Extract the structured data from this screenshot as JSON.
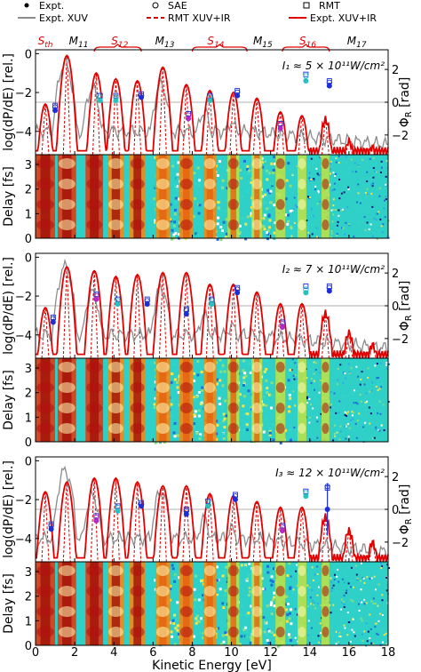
{
  "legend": {
    "entries": [
      {
        "label": "Expt.",
        "marker": "filled-circle",
        "color": "#000000"
      },
      {
        "label": "SAE",
        "marker": "open-circle",
        "color": "#000000"
      },
      {
        "label": "RMT",
        "marker": "open-square",
        "color": "#000000"
      },
      {
        "label": "Expt. XUV",
        "marker": "line",
        "color": "#8c8c8c"
      },
      {
        "label": "RMT XUV+IR",
        "marker": "dashed-line",
        "color": "#e00000"
      },
      {
        "label": "Expt. XUV+IR",
        "marker": "line",
        "color": "#e00000"
      }
    ]
  },
  "top_labels": [
    {
      "text": "S",
      "sub": "th",
      "x": 0.5,
      "color": "#e00000"
    },
    {
      "text": "M",
      "sub": "11",
      "x": 2.2,
      "color": "#000000"
    },
    {
      "text": "S",
      "sub": "12",
      "x": 4.3,
      "color": "#e00000"
    },
    {
      "text": "M",
      "sub": "13",
      "x": 6.6,
      "color": "#000000"
    },
    {
      "text": "S",
      "sub": "14",
      "x": 9.2,
      "color": "#e00000"
    },
    {
      "text": "M",
      "sub": "15",
      "x": 11.6,
      "color": "#000000"
    },
    {
      "text": "S",
      "sub": "16",
      "x": 13.9,
      "color": "#e00000"
    },
    {
      "text": "M",
      "sub": "17",
      "x": 16.4,
      "color": "#000000"
    }
  ],
  "colors": {
    "red": "#e00000",
    "gray": "#8c8c8c",
    "cyan": "#2bbfbf",
    "magenta": "#b02ac8",
    "blue": "#1c2fd6",
    "axis": "#000000"
  },
  "chart_data": [
    {
      "type": "line",
      "panel": 1,
      "intensity_label": "I₁ ≈ 5 × 10¹¹W/cm²",
      "xlabel": "Kinetic Energy [eV]",
      "ylabel": "log(dP/dE) [rel.]",
      "ylabel_right": "Φ_R [rad]",
      "xlim": [
        0,
        18
      ],
      "ylim": [
        -5.2,
        0.2
      ],
      "ylim_right": [
        -3.2,
        3.2
      ],
      "xticks": [
        0,
        2,
        4,
        6,
        8,
        10,
        12,
        14,
        16,
        18
      ],
      "yticks": [
        0,
        -2,
        -4
      ],
      "yticks_right": [
        2,
        0,
        -2
      ],
      "expt_xuv_ir_peaks": [
        [
          0.5,
          -2.6
        ],
        [
          1.6,
          -0.1
        ],
        [
          3.1,
          -1.0
        ],
        [
          4.1,
          -1.3
        ],
        [
          5.2,
          -1.4
        ],
        [
          6.5,
          -0.7
        ],
        [
          7.7,
          -1.6
        ],
        [
          8.9,
          -1.9
        ],
        [
          10.1,
          -2.0
        ],
        [
          11.3,
          -2.3
        ],
        [
          12.5,
          -3.0
        ],
        [
          13.6,
          -3.2
        ],
        [
          14.8,
          -3.4
        ],
        [
          16.0,
          -4.5
        ],
        [
          17.2,
          -4.8
        ]
      ],
      "expt_xuv_peaks": [
        [
          1.5,
          -0.5
        ],
        [
          2.9,
          -1.8
        ],
        [
          6.4,
          -1.6
        ],
        [
          8.6,
          -3.0
        ],
        [
          10.0,
          -3.5
        ]
      ],
      "phases": {
        "expt": [
          [
            1.0,
            -0.5,
            "blue"
          ],
          [
            3.3,
            0.1,
            "cyan"
          ],
          [
            4.1,
            0.1,
            "cyan"
          ],
          [
            5.4,
            0.3,
            "blue"
          ],
          [
            7.8,
            -1.0,
            "magenta"
          ],
          [
            8.9,
            0.1,
            "cyan"
          ],
          [
            10.3,
            0.4,
            "blue"
          ],
          [
            12.5,
            -1.6,
            "magenta"
          ],
          [
            13.8,
            1.3,
            "cyan"
          ],
          [
            15.0,
            1.0,
            "blue"
          ]
        ],
        "sae": [
          [
            1.0,
            -0.3
          ],
          [
            3.3,
            0.3
          ],
          [
            4.1,
            0.3
          ],
          [
            5.4,
            0.4
          ],
          [
            7.8,
            -0.8
          ],
          [
            8.9,
            0.3
          ],
          [
            10.3,
            0.6
          ],
          [
            12.5,
            -1.4
          ],
          [
            13.8,
            1.6
          ],
          [
            15.0,
            1.2
          ]
        ],
        "rmt": [
          [
            1.0,
            -0.2
          ],
          [
            3.3,
            0.4
          ],
          [
            4.1,
            0.4
          ],
          [
            5.4,
            0.5
          ],
          [
            7.8,
            -0.7
          ],
          [
            8.9,
            0.4
          ],
          [
            10.3,
            0.7
          ],
          [
            12.5,
            -1.3
          ],
          [
            13.8,
            1.7
          ],
          [
            15.0,
            1.3
          ]
        ]
      }
    },
    {
      "type": "line",
      "panel": 2,
      "intensity_label": "I₂ ≈ 7 × 10¹¹W/cm²",
      "xlabel": "Kinetic Energy [eV]",
      "ylabel": "log(dP/dE) [rel.]",
      "ylabel_right": "Φ_R [rad]",
      "xlim": [
        0,
        18
      ],
      "ylim": [
        -5.2,
        0.2
      ],
      "ylim_right": [
        -3.2,
        3.2
      ],
      "xticks": [
        0,
        2,
        4,
        6,
        8,
        10,
        12,
        14,
        16,
        18
      ],
      "yticks": [
        0,
        -2,
        -4
      ],
      "yticks_right": [
        2,
        0,
        -2
      ],
      "expt_xuv_ir_peaks": [
        [
          0.5,
          -2.6
        ],
        [
          1.6,
          -0.5
        ],
        [
          3.0,
          -0.7
        ],
        [
          4.1,
          -1.0
        ],
        [
          5.2,
          -0.9
        ],
        [
          6.5,
          -0.8
        ],
        [
          7.7,
          -0.8
        ],
        [
          8.9,
          -1.4
        ],
        [
          10.1,
          -1.4
        ],
        [
          11.3,
          -1.8
        ],
        [
          12.5,
          -2.4
        ],
        [
          13.6,
          -2.4
        ],
        [
          14.8,
          -2.9
        ],
        [
          16.0,
          -3.9
        ],
        [
          17.2,
          -4.5
        ]
      ],
      "expt_xuv_peaks": [
        [
          1.5,
          -0.5
        ],
        [
          2.9,
          -1.8
        ],
        [
          6.4,
          -1.6
        ],
        [
          8.6,
          -3.0
        ],
        [
          10.0,
          -3.5
        ]
      ],
      "phases": {
        "expt": [
          [
            0.9,
            -1.0,
            "blue"
          ],
          [
            3.1,
            0.4,
            "magenta"
          ],
          [
            4.2,
            0.1,
            "cyan"
          ],
          [
            5.7,
            0.1,
            "blue"
          ],
          [
            7.7,
            -0.5,
            "blue"
          ],
          [
            9.0,
            0.1,
            "cyan"
          ],
          [
            10.3,
            0.8,
            "blue"
          ],
          [
            12.6,
            -1.3,
            "magenta"
          ],
          [
            13.8,
            0.8,
            "cyan"
          ],
          [
            15.0,
            0.9,
            "blue"
          ]
        ],
        "sae": [
          [
            0.9,
            -0.8
          ],
          [
            3.1,
            0.6
          ],
          [
            4.2,
            0.3
          ],
          [
            5.7,
            0.3
          ],
          [
            7.7,
            -0.3
          ],
          [
            9.0,
            0.3
          ],
          [
            10.3,
            1.0
          ],
          [
            12.6,
            -1.1
          ],
          [
            13.8,
            1.0
          ],
          [
            15.0,
            1.1
          ]
        ],
        "rmt": [
          [
            0.9,
            -0.7
          ],
          [
            3.1,
            0.7
          ],
          [
            4.2,
            0.4
          ],
          [
            5.7,
            0.4
          ],
          [
            7.7,
            -0.2
          ],
          [
            9.0,
            0.4
          ],
          [
            10.3,
            1.1
          ],
          [
            12.6,
            -1.0
          ],
          [
            13.8,
            1.2
          ],
          [
            15.0,
            1.2
          ]
        ]
      }
    },
    {
      "type": "line",
      "panel": 3,
      "intensity_label": "I₃ ≈ 12 × 10¹¹W/cm²",
      "xlabel": "Kinetic Energy [eV]",
      "ylabel": "log(dP/dE) [rel.]",
      "ylabel_right": "Φ_R [rad]",
      "xlim": [
        0,
        18
      ],
      "ylim": [
        -5.2,
        0.2
      ],
      "ylim_right": [
        -3.2,
        3.2
      ],
      "xticks": [
        0,
        2,
        4,
        6,
        8,
        10,
        12,
        14,
        16,
        18
      ],
      "yticks": [
        0,
        -2,
        -4
      ],
      "yticks_right": [
        2,
        0,
        -2
      ],
      "expt_xuv_ir_peaks": [
        [
          0.5,
          -1.6
        ],
        [
          1.6,
          -1.1
        ],
        [
          3.0,
          -0.9
        ],
        [
          4.1,
          -0.9
        ],
        [
          5.2,
          -1.1
        ],
        [
          6.5,
          -1.3
        ],
        [
          7.7,
          -1.3
        ],
        [
          8.9,
          -1.7
        ],
        [
          10.1,
          -1.8
        ],
        [
          11.3,
          -2.1
        ],
        [
          12.5,
          -2.4
        ],
        [
          13.6,
          -2.4
        ],
        [
          14.8,
          -2.9
        ],
        [
          16.0,
          -3.6
        ],
        [
          17.2,
          -4.2
        ]
      ],
      "expt_xuv_peaks": [
        [
          1.5,
          -0.5
        ],
        [
          2.9,
          -1.8
        ],
        [
          6.4,
          -1.6
        ],
        [
          8.6,
          -3.0
        ],
        [
          10.0,
          -3.5
        ]
      ],
      "phases": {
        "expt": [
          [
            0.8,
            -1.2,
            "blue"
          ],
          [
            3.1,
            -0.7,
            "magenta"
          ],
          [
            4.2,
            -0.1,
            "cyan"
          ],
          [
            5.4,
            0.2,
            "blue"
          ],
          [
            7.7,
            -0.3,
            "blue"
          ],
          [
            8.8,
            0.2,
            "cyan"
          ],
          [
            10.2,
            0.6,
            "blue"
          ],
          [
            12.6,
            -1.3,
            "magenta"
          ],
          [
            13.8,
            0.8,
            "cyan"
          ],
          [
            14.9,
            0.0,
            "blue"
          ]
        ],
        "expt_errorbar": [
          [
            14.9,
            -1.6,
            1.6
          ]
        ],
        "sae": [
          [
            0.8,
            -1.0
          ],
          [
            3.1,
            -0.5
          ],
          [
            4.2,
            0.1
          ],
          [
            5.4,
            0.3
          ],
          [
            7.7,
            -0.1
          ],
          [
            8.8,
            0.4
          ],
          [
            10.2,
            0.8
          ],
          [
            12.6,
            -1.1
          ],
          [
            13.8,
            1.0
          ],
          [
            14.9,
            1.4
          ]
        ],
        "rmt": [
          [
            0.8,
            -0.9
          ],
          [
            3.1,
            -0.4
          ],
          [
            4.2,
            0.2
          ],
          [
            5.4,
            0.4
          ],
          [
            7.7,
            0.0
          ],
          [
            8.8,
            0.5
          ],
          [
            10.2,
            0.9
          ],
          [
            12.6,
            -1.0
          ],
          [
            13.8,
            1.1
          ],
          [
            14.9,
            1.3
          ]
        ]
      }
    },
    {
      "type": "heatmap",
      "panels": [
        1,
        2,
        3
      ],
      "ylabel": "Delay [fs]",
      "xlabel": "Kinetic Energy [eV]",
      "xlim": [
        0,
        18
      ],
      "ylim": [
        0,
        3.4
      ],
      "yticks": [
        0,
        1,
        2,
        3
      ],
      "bands_center_ev": [
        0.5,
        1.6,
        3.0,
        4.1,
        5.2,
        6.5,
        7.7,
        8.9,
        10.1,
        11.3,
        12.5,
        13.6,
        14.8
      ],
      "colormap": "jet"
    }
  ],
  "xlabel_bottom": "Kinetic Energy [eV]"
}
